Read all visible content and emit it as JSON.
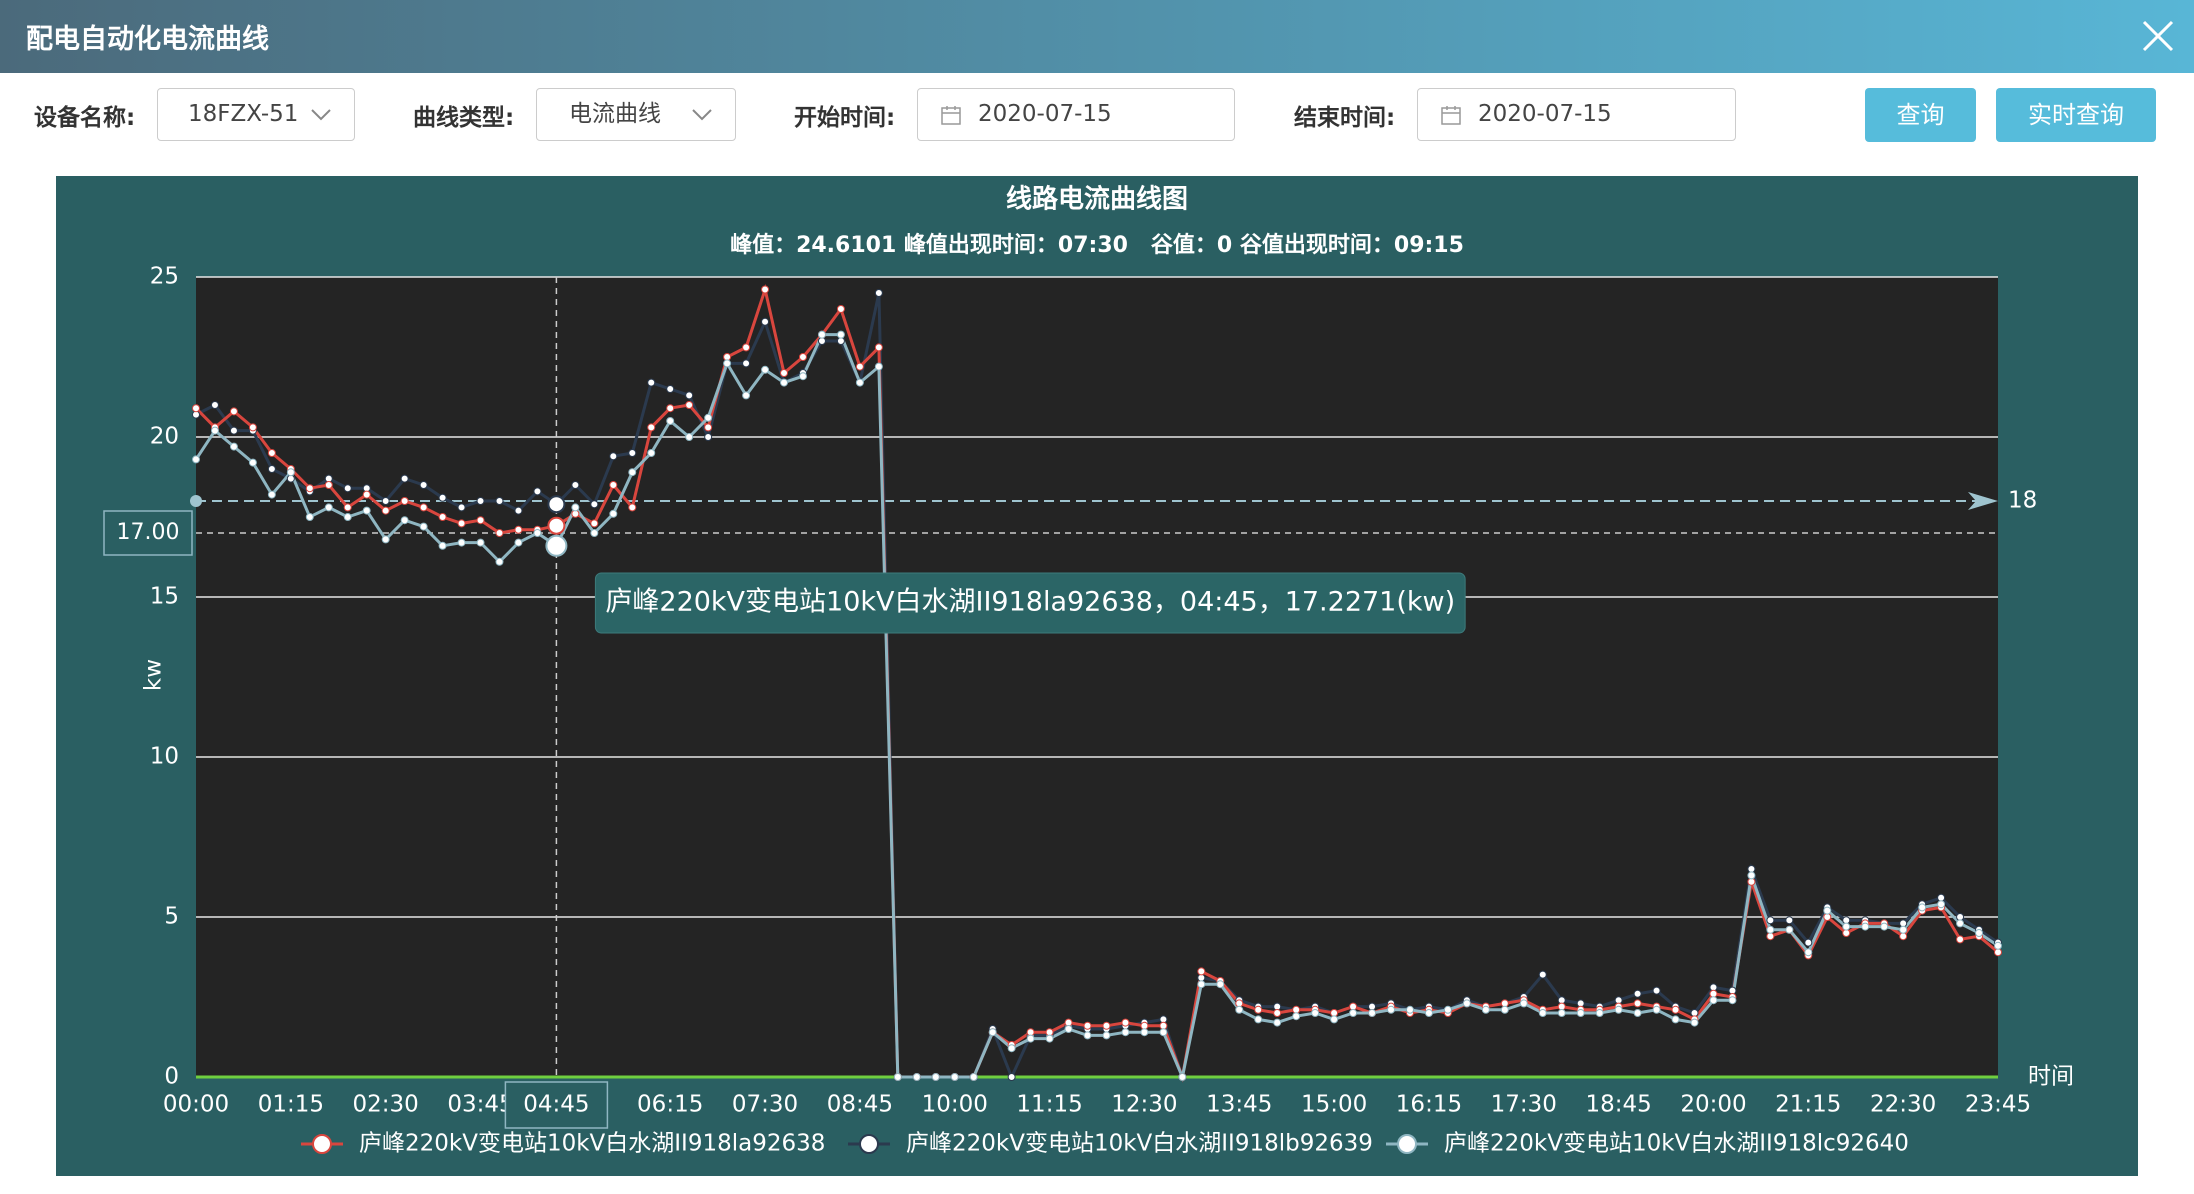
{
  "header": {
    "title": "配电自动化电流曲线"
  },
  "form": {
    "fields": [
      {
        "label": "设备名称:",
        "value": "18FZX-51"
      },
      {
        "label": "曲线类型:",
        "value": "电流曲线"
      },
      {
        "label": "开始时间:",
        "value": "2020-07-15"
      },
      {
        "label": "结束时间:",
        "value": "2020-07-15"
      }
    ],
    "buttons": [
      "查询",
      "实时查询"
    ]
  },
  "chart_data": {
    "type": "line",
    "title": "线路电流曲线图",
    "subtitle": "峰值：24.6101 峰值出现时间：07:30   谷值：0 谷值出现时间：09:15",
    "y_label": "kw",
    "x_label": "时间",
    "categories": [
      "00:00",
      null,
      null,
      null,
      null,
      "01:15",
      null,
      null,
      null,
      null,
      "02:30",
      null,
      null,
      null,
      null,
      "03:45",
      null,
      null,
      null,
      null,
      "05:00",
      null,
      null,
      null,
      null,
      "06:15",
      null,
      null,
      null,
      null,
      "07:30",
      null,
      null,
      null,
      null,
      "08:45",
      null,
      null,
      null,
      null,
      "10:00",
      null,
      null,
      null,
      null,
      "11:15",
      null,
      null,
      null,
      null,
      "12:30",
      null,
      null,
      null,
      null,
      "13:45",
      null,
      null,
      null,
      null,
      "15:00",
      null,
      null,
      null,
      null,
      "16:15",
      null,
      null,
      null,
      null,
      "17:30",
      null,
      null,
      null,
      null,
      "18:45",
      null,
      null,
      null,
      null,
      "20:00",
      null,
      null,
      null,
      null,
      "21:15",
      null,
      null,
      null,
      null,
      "22:30",
      null,
      null,
      null,
      null,
      "23:45"
    ],
    "ylim": [
      0,
      25
    ],
    "yticks": [
      0,
      5,
      10,
      15,
      20,
      25
    ],
    "grid": true,
    "series": [
      {
        "name": "庐峰220kV变电站10kV白水湖II918la92638",
        "color": "#d9463e",
        "values": [
          20.9,
          20.3,
          20.8,
          20.3,
          19.5,
          19.0,
          18.4,
          18.5,
          17.8,
          18.2,
          17.7,
          18.0,
          17.8,
          17.5,
          17.3,
          17.4,
          17.0,
          17.1,
          17.1,
          17.2271,
          17.6,
          17.3,
          18.5,
          17.8,
          20.3,
          20.9,
          21.0,
          20.3,
          22.5,
          22.8,
          24.6101,
          22.0,
          22.5,
          23.2,
          24.0,
          22.2,
          22.8,
          0,
          0,
          0,
          0,
          0,
          1.4,
          1.0,
          1.4,
          1.4,
          1.7,
          1.6,
          1.6,
          1.7,
          1.6,
          1.6,
          0,
          3.3,
          3.0,
          2.3,
          2.1,
          2.0,
          2.1,
          2.1,
          2.0,
          2.2,
          2.0,
          2.2,
          2.0,
          2.1,
          2.0,
          2.3,
          2.2,
          2.3,
          2.4,
          2.1,
          2.2,
          2.1,
          2.1,
          2.2,
          2.3,
          2.2,
          2.1,
          1.8,
          2.6,
          2.5,
          6.1,
          4.4,
          4.6,
          3.8,
          5.0,
          4.5,
          4.8,
          4.8,
          4.4,
          5.2,
          5.3,
          4.3,
          4.4,
          3.9
        ]
      },
      {
        "name": "庐峰220kV变电站10kV白水湖II918lb92639",
        "color": "#2b3a4e",
        "values": [
          20.7,
          21.0,
          20.2,
          20.2,
          19.0,
          18.7,
          18.3,
          18.7,
          18.4,
          18.4,
          18.0,
          18.7,
          18.5,
          18.1,
          17.8,
          18.0,
          18.0,
          17.7,
          18.3,
          17.9,
          18.5,
          17.9,
          19.4,
          19.5,
          21.7,
          21.5,
          21.3,
          20.0,
          22.3,
          22.3,
          23.6,
          21.7,
          22.0,
          23.0,
          23.0,
          21.7,
          24.5,
          0,
          0,
          0,
          0,
          0,
          1.5,
          0,
          1.3,
          1.3,
          1.6,
          1.5,
          1.5,
          1.6,
          1.7,
          1.8,
          0,
          3.1,
          3.0,
          2.4,
          2.2,
          2.2,
          2.1,
          2.2,
          2.0,
          2.2,
          2.2,
          2.3,
          2.1,
          2.2,
          2.1,
          2.4,
          2.2,
          2.3,
          2.5,
          3.2,
          2.4,
          2.3,
          2.2,
          2.4,
          2.6,
          2.7,
          2.2,
          2.0,
          2.8,
          2.7,
          6.5,
          4.9,
          4.9,
          4.2,
          5.3,
          4.9,
          4.9,
          4.8,
          4.8,
          5.4,
          5.6,
          5.0,
          4.6,
          4.2
        ]
      },
      {
        "name": "庐峰220kV变电站10kV白水湖II918lc92640",
        "color": "#8fb6c2",
        "values": [
          19.3,
          20.2,
          19.7,
          19.2,
          18.2,
          18.9,
          17.5,
          17.8,
          17.5,
          17.7,
          16.8,
          17.4,
          17.2,
          16.6,
          16.7,
          16.7,
          16.1,
          16.7,
          17.0,
          16.6,
          17.8,
          17.0,
          17.6,
          18.9,
          19.5,
          20.5,
          20.0,
          20.6,
          22.3,
          21.3,
          22.1,
          21.7,
          21.9,
          23.2,
          23.2,
          21.7,
          22.2,
          0,
          0,
          0,
          0,
          0,
          1.4,
          0.9,
          1.2,
          1.2,
          1.5,
          1.3,
          1.3,
          1.4,
          1.4,
          1.4,
          0,
          2.9,
          2.9,
          2.1,
          1.8,
          1.7,
          1.9,
          2.0,
          1.8,
          2.0,
          2.0,
          2.1,
          2.1,
          2.0,
          2.1,
          2.3,
          2.1,
          2.1,
          2.3,
          2.0,
          2.0,
          2.0,
          2.0,
          2.1,
          2.0,
          2.1,
          1.8,
          1.7,
          2.4,
          2.4,
          6.3,
          4.6,
          4.6,
          3.9,
          5.2,
          4.7,
          4.7,
          4.7,
          4.6,
          5.3,
          5.4,
          4.8,
          4.5,
          4.1
        ]
      }
    ],
    "markline": {
      "value": 18
    },
    "axis_pointer": {
      "x": "04:45",
      "y": 17,
      "y_label": "17.00"
    },
    "tooltip": "庐峰220kV变电站10kV白水湖II918la92638，04:45，17.2271(kw)"
  }
}
